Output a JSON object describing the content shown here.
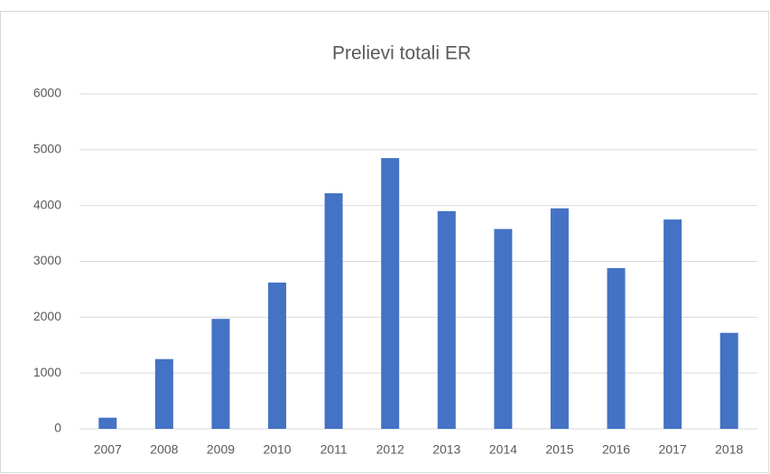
{
  "chart_data": {
    "type": "bar",
    "title": "Prelievi totali ER",
    "categories": [
      "2007",
      "2008",
      "2009",
      "2010",
      "2011",
      "2012",
      "2013",
      "2014",
      "2015",
      "2016",
      "2017",
      "2018"
    ],
    "values": [
      200,
      1250,
      1970,
      2620,
      4220,
      4850,
      3900,
      3580,
      3950,
      2880,
      3750,
      1720
    ],
    "color": "#4472c4",
    "ylim": [
      0,
      6000
    ],
    "yticks": [
      0,
      1000,
      2000,
      3000,
      4000,
      5000,
      6000
    ],
    "grid": true
  }
}
